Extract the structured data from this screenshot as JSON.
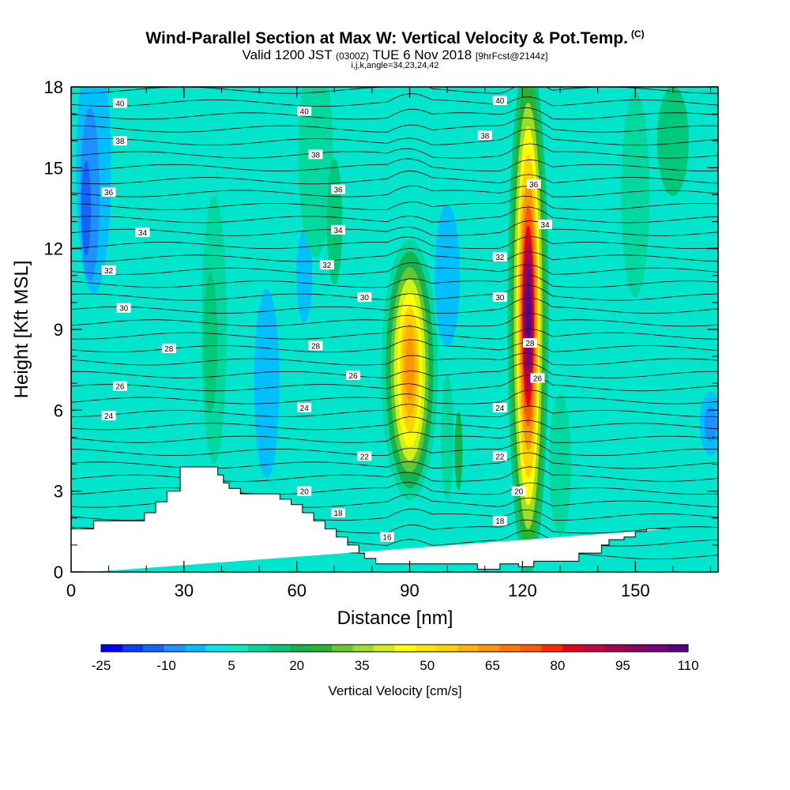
{
  "title": {
    "main": "Wind-Parallel Section at Max W: Vertical Velocity & Pot.Temp.",
    "main_mark": "(C)",
    "valid_a": "Valid 1200 JST",
    "valid_b": "(0300Z)",
    "valid_c": "TUE 6 Nov 2018",
    "valid_d": "[9hrFcst@2144z]",
    "indices": "i,j,k,angle=34,23,24,42"
  },
  "chart_data": {
    "type": "heatmap",
    "xlabel": "Distance [nm]",
    "ylabel": "Height [Kft MSL]",
    "xlim": [
      0,
      172
    ],
    "ylim": [
      0,
      18
    ],
    "x_ticks": [
      0,
      30,
      60,
      90,
      120,
      150
    ],
    "y_ticks": [
      0,
      3,
      6,
      9,
      12,
      15,
      18
    ],
    "colorbar": {
      "label": "Vertical Velocity [cm/s]",
      "tick_labels": [
        "-25",
        "-10",
        "5",
        "20",
        "35",
        "50",
        "65",
        "80",
        "95",
        "110"
      ],
      "levels": [
        -25,
        -20,
        -15,
        -10,
        -5,
        0,
        5,
        10,
        15,
        20,
        25,
        30,
        35,
        40,
        45,
        50,
        55,
        60,
        65,
        70,
        75,
        80,
        85,
        90,
        95,
        100,
        105,
        110
      ],
      "colors": [
        "#0000ff",
        "#0a3cff",
        "#1464ff",
        "#1e90ff",
        "#00bfff",
        "#00e5ee",
        "#00eec4",
        "#00d8a0",
        "#00c87a",
        "#14b450",
        "#28b432",
        "#64c832",
        "#a0dc28",
        "#d2f014",
        "#ffff00",
        "#ffe600",
        "#ffd200",
        "#ffb400",
        "#ff9600",
        "#ff7800",
        "#ff5a00",
        "#ff2800",
        "#e6001e",
        "#c8003c",
        "#aa0050",
        "#8c0064",
        "#780078",
        "#5a0082"
      ]
    },
    "updraft_cores": [
      {
        "x": 90,
        "y_range": [
          4,
          11
        ],
        "peak_w_cms": 55
      },
      {
        "x": 121,
        "y_range": [
          0.5,
          18
        ],
        "peak_w_cms": 110
      }
    ],
    "theta_contours": [
      {
        "label": "40",
        "x": 13,
        "y": 17.4
      },
      {
        "label": "40",
        "x": 62,
        "y": 17.1
      },
      {
        "label": "40",
        "x": 114,
        "y": 17.5
      },
      {
        "label": "38",
        "x": 13,
        "y": 16.0
      },
      {
        "label": "38",
        "x": 65,
        "y": 15.5
      },
      {
        "label": "38",
        "x": 110,
        "y": 16.2
      },
      {
        "label": "36",
        "x": 10,
        "y": 14.1
      },
      {
        "label": "36",
        "x": 71,
        "y": 14.2
      },
      {
        "label": "36",
        "x": 123,
        "y": 14.4
      },
      {
        "label": "34",
        "x": 19,
        "y": 12.6
      },
      {
        "label": "34",
        "x": 71,
        "y": 12.7
      },
      {
        "label": "34",
        "x": 126,
        "y": 12.9
      },
      {
        "label": "32",
        "x": 10,
        "y": 11.2
      },
      {
        "label": "32",
        "x": 68,
        "y": 11.4
      },
      {
        "label": "32",
        "x": 114,
        "y": 11.7
      },
      {
        "label": "30",
        "x": 14,
        "y": 9.8
      },
      {
        "label": "30",
        "x": 78,
        "y": 10.2
      },
      {
        "label": "30",
        "x": 114,
        "y": 10.2
      },
      {
        "label": "28",
        "x": 26,
        "y": 8.3
      },
      {
        "label": "28",
        "x": 65,
        "y": 8.4
      },
      {
        "label": "28",
        "x": 122,
        "y": 8.5
      },
      {
        "label": "26",
        "x": 13,
        "y": 6.9
      },
      {
        "label": "26",
        "x": 75,
        "y": 7.3
      },
      {
        "label": "26",
        "x": 124,
        "y": 7.2
      },
      {
        "label": "24",
        "x": 10,
        "y": 5.8
      },
      {
        "label": "24",
        "x": 62,
        "y": 6.1
      },
      {
        "label": "24",
        "x": 114,
        "y": 6.1
      },
      {
        "label": "22",
        "x": 78,
        "y": 4.3
      },
      {
        "label": "22",
        "x": 114,
        "y": 4.3
      },
      {
        "label": "20",
        "x": 62,
        "y": 3.0
      },
      {
        "label": "20",
        "x": 119,
        "y": 3.0
      },
      {
        "label": "18",
        "x": 71,
        "y": 2.2
      },
      {
        "label": "18",
        "x": 114,
        "y": 1.9
      },
      {
        "label": "16",
        "x": 84,
        "y": 1.3
      }
    ],
    "terrain_x_nm": [
      0,
      6,
      6,
      19.5,
      19.5,
      22.5,
      22.5,
      25.5,
      25.5,
      29,
      29,
      39,
      39,
      40.5,
      40.5,
      42,
      42,
      45,
      45,
      55.5,
      55.5,
      58.5,
      58.5,
      61.5,
      61.5,
      64.5,
      64.5,
      67.5,
      67.5,
      70.5,
      70.5,
      73.5,
      73.5,
      76.5,
      76.5,
      78,
      78,
      81,
      81,
      108,
      108,
      114,
      114,
      119,
      119,
      123,
      123,
      135,
      135,
      141,
      141,
      143,
      143,
      147,
      147,
      150,
      150,
      153,
      153,
      159.5,
      159.5,
      172
    ],
    "terrain_kft": [
      1.6,
      1.6,
      1.9,
      1.9,
      2.2,
      2.2,
      2.6,
      2.6,
      3.0,
      3.0,
      3.9,
      3.9,
      3.6,
      3.6,
      3.3,
      3.3,
      3.1,
      3.1,
      2.9,
      2.9,
      2.7,
      2.7,
      2.5,
      2.5,
      2.2,
      2.2,
      1.9,
      1.9,
      1.6,
      1.6,
      1.3,
      1.3,
      1.0,
      1.0,
      0.7,
      0.7,
      0.5,
      0.5,
      0.3,
      0.3,
      0.1,
      0.1,
      0.3,
      0.3,
      0.2,
      0.2,
      0.4,
      0.4,
      0.7,
      0.7,
      1.0,
      1.0,
      1.2,
      1.2,
      1.3,
      1.3,
      1.5,
      1.5,
      1.6,
      1.6
    ]
  }
}
